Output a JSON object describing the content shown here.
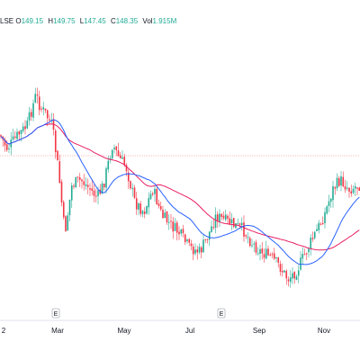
{
  "legend": {
    "exchange": "LSE",
    "open_label": "O",
    "open": "149.15",
    "high_label": "H",
    "high": "149.75",
    "low_label": "L",
    "low": "147.45",
    "close_label": "C",
    "close": "148.35",
    "vol_label": "Vol",
    "vol": "1.915M"
  },
  "colors": {
    "up": "#22ab94",
    "down": "#f23645",
    "ma_fast": "#2962ff",
    "ma_slow": "#e91e63",
    "price_line": "#f7a6ae"
  },
  "chart_data": {
    "type": "candlestick",
    "x_tick_labels": [
      "2",
      "Mar",
      "May",
      "Jul",
      "Sep",
      "Nov"
    ],
    "earnings_markers": [
      "E",
      "E"
    ],
    "series": [
      {
        "kind": "candles"
      },
      {
        "kind": "moving_average_fast"
      },
      {
        "kind": "moving_average_slow"
      }
    ],
    "price_line_visible": true,
    "grid": false
  }
}
